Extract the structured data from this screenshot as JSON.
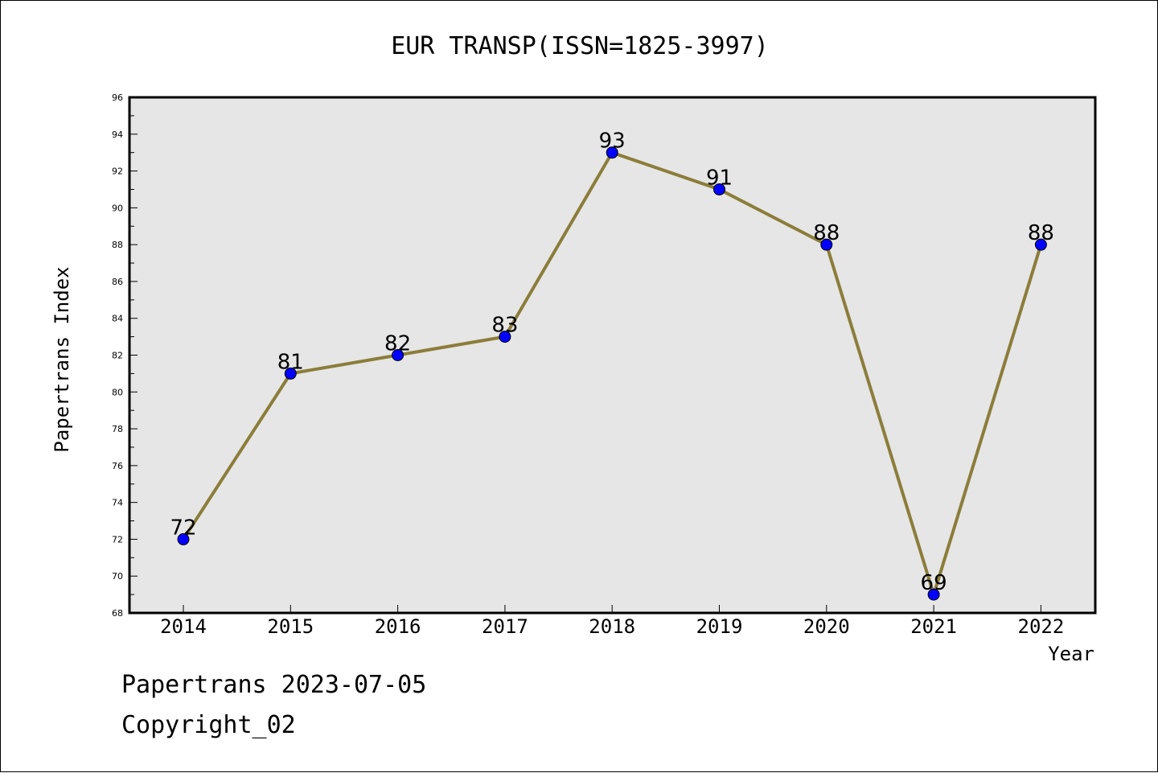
{
  "chart_data": {
    "type": "line",
    "title": "EUR TRANSP(ISSN=1825-3997)",
    "xlabel": "Year",
    "ylabel": "Papertrans Index",
    "categories": [
      "2014",
      "2015",
      "2016",
      "2017",
      "2018",
      "2019",
      "2020",
      "2021",
      "2022"
    ],
    "series": [
      {
        "values": [
          72,
          81,
          82,
          83,
          93,
          91,
          88,
          69,
          88
        ]
      }
    ],
    "ylim": [
      68,
      96
    ],
    "yticks": [
      "68",
      "70",
      "72",
      "74",
      "76",
      "78",
      "80",
      "82",
      "84",
      "86",
      "88",
      "90",
      "92",
      "94",
      "96"
    ],
    "grid": false,
    "colors": {
      "line": "#8b7d3a",
      "marker": "#0000ff",
      "plot_background": "#e6e6e6"
    }
  },
  "footer": {
    "date_line": "Papertrans 2023-07-05",
    "copyright": "Copyright_02"
  }
}
